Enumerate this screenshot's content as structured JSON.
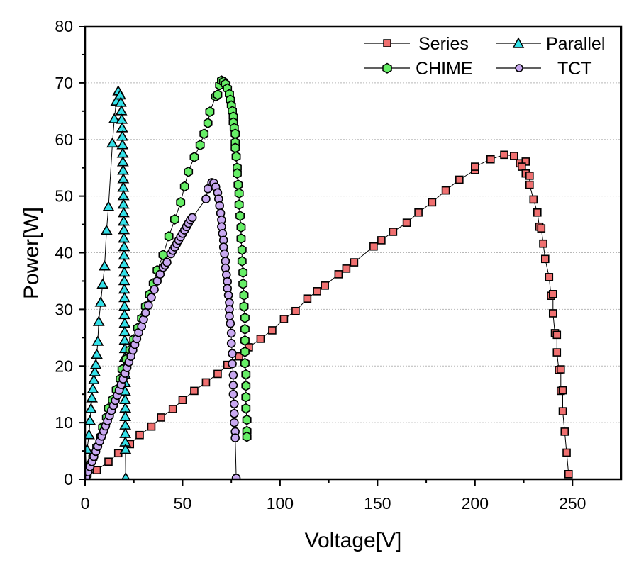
{
  "chart_data": {
    "type": "scatter",
    "title": "",
    "xlabel": "Voltage[V]",
    "ylabel": "Power[W]",
    "xlim": [
      0,
      275
    ],
    "ylim": [
      0,
      80
    ],
    "xticks": [
      0,
      50,
      100,
      150,
      200,
      250
    ],
    "xtick_labels": [
      "0",
      "50",
      "100",
      "150",
      "200",
      "250"
    ],
    "yticks": [
      0,
      10,
      20,
      30,
      40,
      50,
      60,
      70,
      80
    ],
    "ytick_labels": [
      "0",
      "10",
      "20",
      "30",
      "40",
      "50",
      "60",
      "70",
      "80"
    ],
    "grid": "horizontal dotted",
    "legend": "top-right",
    "series": [
      {
        "name": "Series",
        "marker": "square",
        "color": "#f07070",
        "points": [
          [
            0.5,
            0.5
          ],
          [
            6,
            1.6
          ],
          [
            12,
            3.1
          ],
          [
            17,
            4.6
          ],
          [
            23,
            6.2
          ],
          [
            28,
            7.8
          ],
          [
            34,
            9.3
          ],
          [
            39,
            10.9
          ],
          [
            45,
            12.4
          ],
          [
            50,
            14.0
          ],
          [
            56,
            15.6
          ],
          [
            62,
            17.1
          ],
          [
            68,
            18.6
          ],
          [
            73,
            20.2
          ],
          [
            79,
            21.7
          ],
          [
            84,
            23.3
          ],
          [
            90,
            24.8
          ],
          [
            96,
            26.3
          ],
          [
            102,
            28.3
          ],
          [
            108,
            29.7
          ],
          [
            114,
            31.9
          ],
          [
            119,
            33.2
          ],
          [
            123,
            34.2
          ],
          [
            130,
            36.2
          ],
          [
            134,
            37.2
          ],
          [
            138,
            38.3
          ],
          [
            148,
            41.1
          ],
          [
            152,
            42.2
          ],
          [
            158,
            43.7
          ],
          [
            165,
            45.3
          ],
          [
            171,
            47.1
          ],
          [
            178,
            48.9
          ],
          [
            185,
            51.0
          ],
          [
            192,
            52.9
          ],
          [
            200,
            54.6
          ],
          [
            200,
            55.2
          ],
          [
            208,
            56.5
          ],
          [
            215,
            57.3
          ],
          [
            220,
            57.1
          ],
          [
            223,
            55.8
          ],
          [
            226,
            56.1
          ],
          [
            224,
            55.2
          ],
          [
            226,
            54.0
          ],
          [
            228,
            53.6
          ],
          [
            228,
            52.0
          ],
          [
            230,
            49.4
          ],
          [
            232,
            47.1
          ],
          [
            233,
            44.6
          ],
          [
            234,
            44.3
          ],
          [
            235,
            41.6
          ],
          [
            236,
            38.9
          ],
          [
            238,
            35.7
          ],
          [
            239,
            32.4
          ],
          [
            240,
            32.7
          ],
          [
            240,
            29.3
          ],
          [
            241,
            25.8
          ],
          [
            242,
            25.5
          ],
          [
            242,
            22.4
          ],
          [
            243,
            19.3
          ],
          [
            244,
            19.4
          ],
          [
            244,
            15.6
          ],
          [
            245,
            15.7
          ],
          [
            245,
            12.0
          ],
          [
            246,
            8.4
          ],
          [
            247,
            4.7
          ],
          [
            248,
            0.9
          ]
        ]
      },
      {
        "name": "Parallel",
        "marker": "triangle",
        "color": "#33e0e8",
        "points": [
          [
            0.5,
            0.3
          ],
          [
            1,
            5.2
          ],
          [
            2,
            7.8
          ],
          [
            2.5,
            10.3
          ],
          [
            3,
            12.4
          ],
          [
            3.5,
            14.3
          ],
          [
            4,
            15.9
          ],
          [
            4.5,
            17.5
          ],
          [
            5,
            18.9
          ],
          [
            5.5,
            20.2
          ],
          [
            6,
            22.0
          ],
          [
            6.5,
            24.3
          ],
          [
            7,
            27.8
          ],
          [
            8,
            31.2
          ],
          [
            9,
            34.4
          ],
          [
            10,
            37.6
          ],
          [
            11,
            43.9
          ],
          [
            12,
            48.1
          ],
          [
            14,
            59.3
          ],
          [
            15,
            63.6
          ],
          [
            16,
            66.7
          ],
          [
            17,
            68.5
          ],
          [
            18,
            67.8
          ],
          [
            18.3,
            66.5
          ],
          [
            18.6,
            65.0
          ],
          [
            18.8,
            63.5
          ],
          [
            19,
            62.0
          ],
          [
            19.1,
            60.5
          ],
          [
            19.2,
            59.0
          ],
          [
            19.3,
            57.5
          ],
          [
            19.4,
            56.0
          ],
          [
            19.5,
            54.5
          ],
          [
            19.6,
            53.0
          ],
          [
            19.6,
            51.5
          ],
          [
            19.7,
            50.0
          ],
          [
            19.7,
            48.5
          ],
          [
            19.8,
            47.0
          ],
          [
            19.8,
            45.5
          ],
          [
            19.9,
            44.0
          ],
          [
            19.9,
            42.5
          ],
          [
            20,
            41.0
          ],
          [
            20,
            39.5
          ],
          [
            20,
            38.0
          ],
          [
            20.1,
            36.5
          ],
          [
            20.1,
            35.0
          ],
          [
            20.1,
            33.5
          ],
          [
            20.2,
            32.0
          ],
          [
            20.2,
            30.5
          ],
          [
            20.2,
            29.0
          ],
          [
            20.3,
            27.5
          ],
          [
            20.3,
            26.0
          ],
          [
            20.3,
            24.5
          ],
          [
            20.4,
            23.0
          ],
          [
            20.4,
            21.5
          ],
          [
            20.4,
            20.0
          ],
          [
            20.5,
            18.5
          ],
          [
            20.5,
            17.0
          ],
          [
            20.5,
            15.5
          ],
          [
            20.5,
            14.0
          ],
          [
            20.6,
            12.5
          ],
          [
            20.6,
            11.0
          ],
          [
            20.6,
            9.5
          ],
          [
            20.6,
            8.0
          ],
          [
            20.6,
            6.5
          ],
          [
            20.7,
            5.2
          ],
          [
            20.8,
            0.2
          ]
        ]
      },
      {
        "name": "CHIME",
        "marker": "hexagon",
        "color": "#66ee66",
        "points": [
          [
            1,
            0.8
          ],
          [
            2.5,
            2.5
          ],
          [
            4,
            3.8
          ],
          [
            6,
            5.7
          ],
          [
            8,
            7.5
          ],
          [
            9,
            9.2
          ],
          [
            11,
            10.9
          ],
          [
            12,
            12.5
          ],
          [
            14,
            14.0
          ],
          [
            16,
            15.8
          ],
          [
            18,
            17.7
          ],
          [
            19,
            19.4
          ],
          [
            21,
            21.2
          ],
          [
            23,
            22.8
          ],
          [
            25,
            24.7
          ],
          [
            27,
            26.7
          ],
          [
            29,
            28.4
          ],
          [
            31,
            30.5
          ],
          [
            33,
            32.6
          ],
          [
            35,
            34.6
          ],
          [
            37,
            36.9
          ],
          [
            40,
            39.6
          ],
          [
            43,
            42.9
          ],
          [
            46,
            45.9
          ],
          [
            49,
            48.9
          ],
          [
            51,
            51.7
          ],
          [
            53,
            54.3
          ],
          [
            56,
            56.9
          ],
          [
            59,
            59.0
          ],
          [
            61,
            61.0
          ],
          [
            63,
            62.9
          ],
          [
            64,
            64.9
          ],
          [
            67,
            67.6
          ],
          [
            68,
            67.9
          ],
          [
            69,
            69.6
          ],
          [
            70,
            70.4
          ],
          [
            71,
            70.2
          ],
          [
            72,
            69.8
          ],
          [
            73,
            69.0
          ],
          [
            74,
            68.0
          ],
          [
            74.5,
            67.0
          ],
          [
            75,
            66.0
          ],
          [
            75.5,
            65.0
          ],
          [
            76,
            64.0
          ],
          [
            76,
            63.0
          ],
          [
            76.5,
            62.0
          ],
          [
            77,
            61.0
          ],
          [
            77,
            59.5
          ],
          [
            77,
            58.5
          ],
          [
            77.5,
            57.0
          ],
          [
            78,
            55.0
          ],
          [
            78,
            54.0
          ],
          [
            78.5,
            52.0
          ],
          [
            79,
            50.5
          ],
          [
            79,
            48.5
          ],
          [
            79.5,
            46.5
          ],
          [
            80,
            44.5
          ],
          [
            80,
            42.5
          ],
          [
            80.5,
            40.5
          ],
          [
            80.5,
            38.5
          ],
          [
            81,
            36.5
          ],
          [
            81,
            34.5
          ],
          [
            81.5,
            32.5
          ],
          [
            81.5,
            30.5
          ],
          [
            82,
            28.5
          ],
          [
            82,
            26.5
          ],
          [
            82,
            24.5
          ],
          [
            82,
            22.5
          ],
          [
            82,
            20.5
          ],
          [
            82.5,
            18.5
          ],
          [
            82.5,
            16.5
          ],
          [
            82.5,
            14.5
          ],
          [
            82.5,
            12.5
          ],
          [
            83,
            10.5
          ],
          [
            83,
            8.5
          ],
          [
            83,
            7.5
          ]
        ]
      },
      {
        "name": "TCT",
        "marker": "circle",
        "color": "#c8a8f0",
        "points": [
          [
            0.5,
            0.4
          ],
          [
            1.5,
            1.3
          ],
          [
            2.5,
            2.2
          ],
          [
            3.5,
            3.1
          ],
          [
            4.5,
            4.0
          ],
          [
            5.5,
            4.9
          ],
          [
            6.5,
            5.8
          ],
          [
            7.5,
            6.7
          ],
          [
            8.5,
            7.6
          ],
          [
            9.5,
            8.5
          ],
          [
            10.5,
            9.4
          ],
          [
            11.5,
            10.3
          ],
          [
            12.5,
            11.2
          ],
          [
            13.5,
            12.1
          ],
          [
            14.5,
            13.0
          ],
          [
            15.5,
            13.9
          ],
          [
            16.5,
            14.8
          ],
          [
            17.5,
            15.7
          ],
          [
            18.5,
            16.7
          ],
          [
            19.5,
            17.7
          ],
          [
            20.5,
            18.7
          ],
          [
            21.5,
            19.7
          ],
          [
            22.5,
            20.7
          ],
          [
            23.5,
            21.7
          ],
          [
            24.5,
            22.8
          ],
          [
            25.5,
            23.8
          ],
          [
            26.5,
            24.8
          ],
          [
            27.5,
            25.9
          ],
          [
            29,
            27.0
          ],
          [
            30,
            28.2
          ],
          [
            31,
            29.4
          ],
          [
            32.5,
            30.7
          ],
          [
            34,
            32.1
          ],
          [
            35.5,
            33.5
          ],
          [
            37,
            35.0
          ],
          [
            38.5,
            36.2
          ],
          [
            40,
            37.4
          ],
          [
            41,
            37.8
          ],
          [
            42,
            38.3
          ],
          [
            44,
            39.8
          ],
          [
            45,
            40.4
          ],
          [
            46,
            41.0
          ],
          [
            47,
            41.6
          ],
          [
            48,
            42.2
          ],
          [
            49,
            42.8
          ],
          [
            50,
            43.4
          ],
          [
            51,
            44.0
          ],
          [
            52,
            44.6
          ],
          [
            53,
            45.2
          ],
          [
            54,
            45.8
          ],
          [
            55,
            46.2
          ],
          [
            62,
            49.5
          ],
          [
            63,
            51.3
          ],
          [
            65,
            52.4
          ],
          [
            66,
            52.3
          ],
          [
            67,
            51.6
          ],
          [
            68,
            50.6
          ],
          [
            68.5,
            49.5
          ],
          [
            69,
            48.3
          ],
          [
            69.5,
            47.0
          ],
          [
            70,
            45.8
          ],
          [
            70,
            44.6
          ],
          [
            70.5,
            43.4
          ],
          [
            71,
            42.2
          ],
          [
            71,
            41.0
          ],
          [
            71.5,
            39.8
          ],
          [
            72,
            38.5
          ],
          [
            72,
            37.3
          ],
          [
            72.5,
            36.1
          ],
          [
            73,
            34.9
          ],
          [
            73,
            33.7
          ],
          [
            73.5,
            32.5
          ],
          [
            74,
            31.2
          ],
          [
            74,
            30.0
          ],
          [
            74,
            28.8
          ],
          [
            74.5,
            27.5
          ],
          [
            75,
            25.8
          ],
          [
            75,
            24.0
          ],
          [
            75.5,
            22.2
          ],
          [
            75.5,
            20.4
          ],
          [
            76,
            18.4
          ],
          [
            76,
            16.6
          ],
          [
            76,
            15.0
          ],
          [
            76.5,
            13.3
          ],
          [
            76.5,
            11.6
          ],
          [
            76.5,
            10.0
          ],
          [
            77,
            8.4
          ],
          [
            77,
            7.3
          ],
          [
            77.5,
            0.2
          ]
        ]
      }
    ]
  }
}
